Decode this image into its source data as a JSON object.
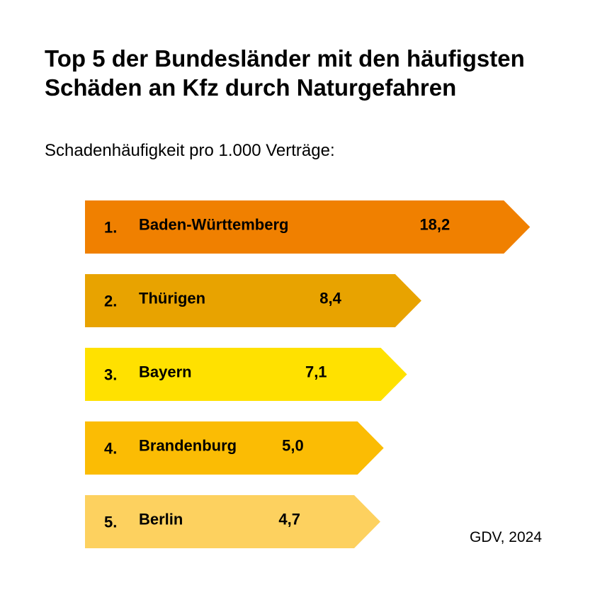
{
  "header": {
    "title": "Top 5 der Bundesländer mit den häufigsten Schäden an Kfz durch Naturgefahren",
    "subtitle": "Schadenhäufigkeit pro 1.000 Verträge:"
  },
  "footer": {
    "source": "GDV, 2024"
  },
  "chart_data": {
    "type": "bar",
    "orientation": "horizontal",
    "title": "Top 5 der Bundesländer mit den häufigsten Schäden an Kfz durch Naturgefahren",
    "subtitle": "Schadenhäufigkeit pro 1.000 Verträge:",
    "categories": [
      "Baden-Württemberg",
      "Thürigen",
      "Bayern",
      "Brandenburg",
      "Berlin"
    ],
    "ranks": [
      "1.",
      "2.",
      "3.",
      "4.",
      "5."
    ],
    "values": [
      18.2,
      8.4,
      7.1,
      5.0,
      4.7
    ],
    "value_labels": [
      "18,2",
      "8,4",
      "7,1",
      "5,0",
      "4,7"
    ],
    "colors": [
      "#f08000",
      "#e8a300",
      "#ffe100",
      "#fbbc04",
      "#fdd15f"
    ],
    "grid": false,
    "legend": "none"
  }
}
